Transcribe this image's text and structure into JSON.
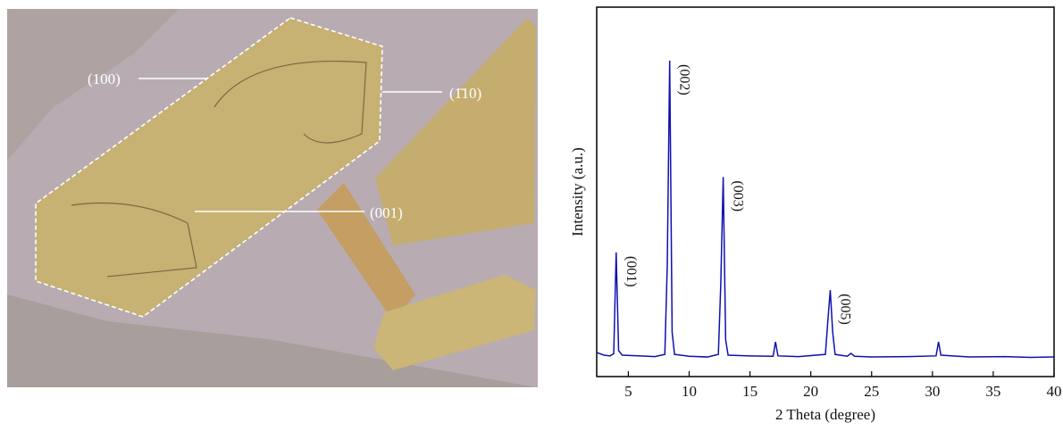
{
  "micrograph": {
    "labels": [
      "(100)",
      "(1̄10)",
      "(001)"
    ]
  },
  "chart_data": {
    "type": "line",
    "xlabel": "2 Theta (degree)",
    "ylabel": "Intensity (a.u.)",
    "x": [
      2.4,
      3.0,
      3.5,
      3.8,
      4.0,
      4.2,
      4.5,
      6,
      7.2,
      8.0,
      8.2,
      8.4,
      8.6,
      8.8,
      10,
      11.5,
      12.4,
      12.6,
      12.8,
      13.0,
      13.2,
      15,
      16.9,
      17.1,
      17.3,
      19,
      21.2,
      21.4,
      21.6,
      21.8,
      22.0,
      23,
      23.3,
      23.6,
      25,
      28,
      30.3,
      30.5,
      30.7,
      33,
      36,
      38,
      40
    ],
    "values": [
      6.5,
      5.8,
      5.6,
      6.2,
      33.6,
      7,
      5.8,
      5.6,
      5.4,
      6,
      30,
      85.5,
      12,
      6,
      5.5,
      5.3,
      6,
      25,
      54,
      10,
      5.8,
      5.6,
      5.5,
      9.4,
      5.6,
      5.4,
      6,
      15,
      23.4,
      12,
      6,
      5.5,
      6.3,
      5.5,
      5.3,
      5.4,
      5.6,
      9.4,
      5.8,
      5.3,
      5.4,
      5.2,
      5.3
    ],
    "color": "#1010b0",
    "annotations": [
      {
        "label": "(001)",
        "x": 4.0
      },
      {
        "label": "(002)",
        "x": 8.4
      },
      {
        "label": "(003)",
        "x": 12.8
      },
      {
        "label": "(005)",
        "x": 21.6
      }
    ],
    "xlim": [
      2.4,
      40
    ],
    "ylim": [
      0,
      100
    ],
    "xticks": [
      5,
      10,
      15,
      20,
      25,
      30,
      35,
      40
    ]
  }
}
